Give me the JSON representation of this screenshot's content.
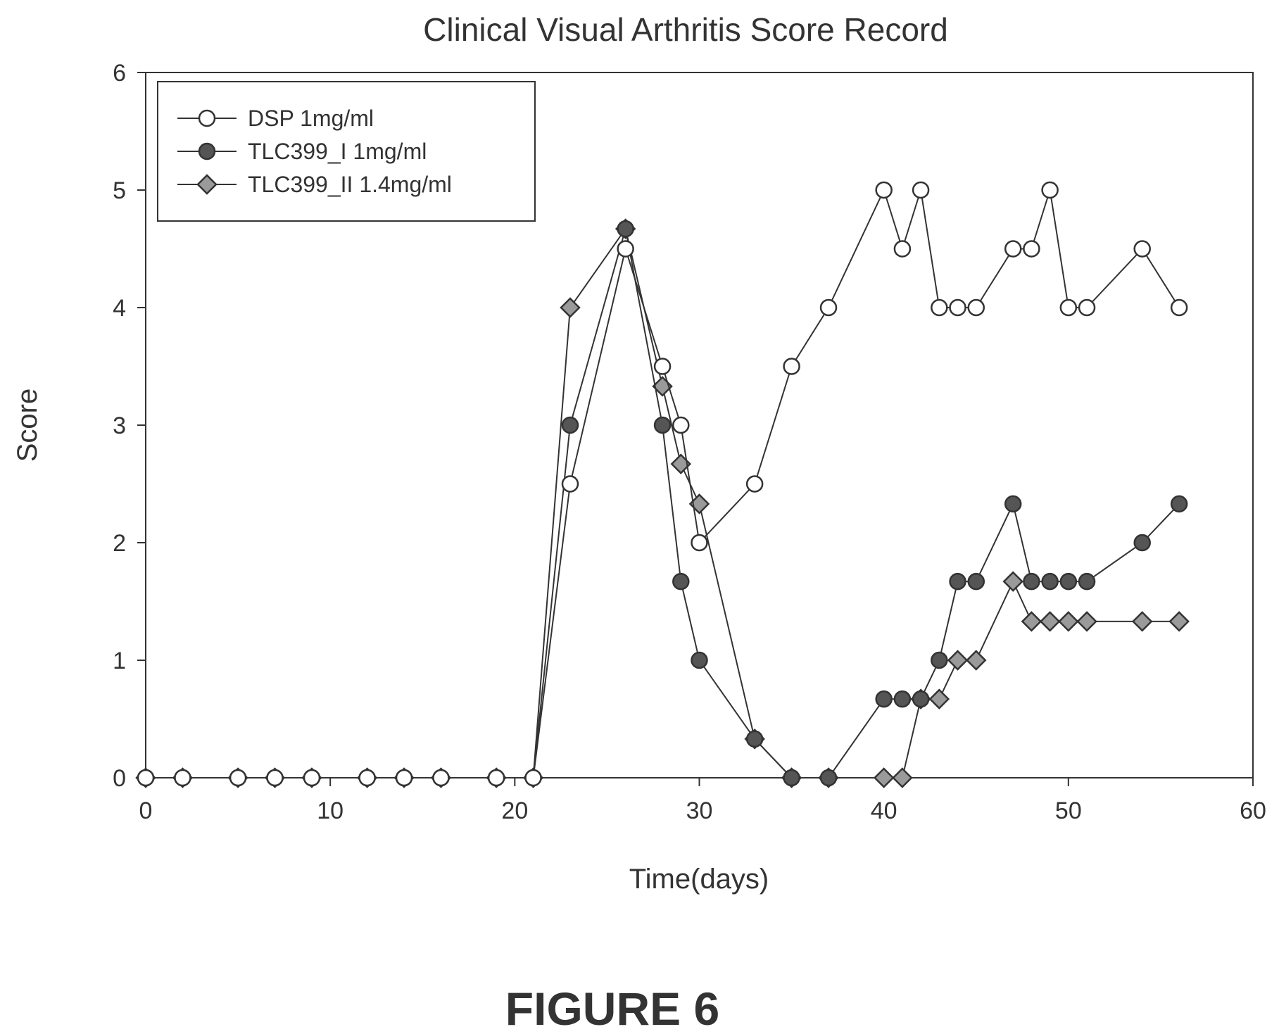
{
  "figure_caption": "FIGURE 6",
  "chart_data": {
    "type": "line",
    "title": "Clinical Visual Arthritis Score Record",
    "xlabel": "Time(days)",
    "ylabel": "Score",
    "xlim": [
      0,
      60
    ],
    "ylim": [
      0,
      6
    ],
    "x_ticks": [
      "0",
      "10",
      "20",
      "30",
      "40",
      "50",
      "60"
    ],
    "y_ticks": [
      "0",
      "1",
      "2",
      "3",
      "4",
      "5",
      "6"
    ],
    "grid": false,
    "legend_position": "top-left",
    "line_color": "#333333",
    "series": [
      {
        "name": "DSP  1mg/ml",
        "marker": "circle-open",
        "points": [
          [
            0,
            0
          ],
          [
            2,
            0
          ],
          [
            5,
            0
          ],
          [
            7,
            0
          ],
          [
            9,
            0
          ],
          [
            12,
            0
          ],
          [
            14,
            0
          ],
          [
            16,
            0
          ],
          [
            19,
            0
          ],
          [
            21,
            0
          ],
          [
            23,
            2.5
          ],
          [
            26,
            4.5
          ],
          [
            28,
            3.5
          ],
          [
            29,
            3.0
          ],
          [
            30,
            2.0
          ],
          [
            33,
            2.5
          ],
          [
            35,
            3.5
          ],
          [
            37,
            4.0
          ],
          [
            40,
            5.0
          ],
          [
            41,
            4.5
          ],
          [
            42,
            5.0
          ],
          [
            43,
            4.0
          ],
          [
            44,
            4.0
          ],
          [
            45,
            4.0
          ],
          [
            47,
            4.5
          ],
          [
            48,
            4.5
          ],
          [
            49,
            5.0
          ],
          [
            50,
            4.0
          ],
          [
            51,
            4.0
          ],
          [
            54,
            4.5
          ],
          [
            56,
            4.0
          ]
        ]
      },
      {
        "name": "TLC399_I  1mg/ml",
        "marker": "circle-filled",
        "points": [
          [
            0,
            0
          ],
          [
            2,
            0
          ],
          [
            5,
            0
          ],
          [
            7,
            0
          ],
          [
            9,
            0
          ],
          [
            12,
            0
          ],
          [
            14,
            0
          ],
          [
            16,
            0
          ],
          [
            19,
            0
          ],
          [
            21,
            0
          ],
          [
            23,
            3.0
          ],
          [
            26,
            4.67
          ],
          [
            28,
            3.0
          ],
          [
            29,
            1.67
          ],
          [
            30,
            1.0
          ],
          [
            33,
            0.33
          ],
          [
            35,
            0
          ],
          [
            37,
            0
          ],
          [
            40,
            0.67
          ],
          [
            41,
            0.67
          ],
          [
            42,
            0.67
          ],
          [
            43,
            1.0
          ],
          [
            44,
            1.67
          ],
          [
            45,
            1.67
          ],
          [
            47,
            2.33
          ],
          [
            48,
            1.67
          ],
          [
            49,
            1.67
          ],
          [
            50,
            1.67
          ],
          [
            51,
            1.67
          ],
          [
            54,
            2.0
          ],
          [
            56,
            2.33
          ]
        ]
      },
      {
        "name": "TLC399_II  1.4mg/ml",
        "marker": "diamond-filled",
        "points": [
          [
            0,
            0
          ],
          [
            2,
            0
          ],
          [
            5,
            0
          ],
          [
            7,
            0
          ],
          [
            9,
            0
          ],
          [
            12,
            0
          ],
          [
            14,
            0
          ],
          [
            16,
            0
          ],
          [
            19,
            0
          ],
          [
            21,
            0
          ],
          [
            23,
            4.0
          ],
          [
            26,
            4.67
          ],
          [
            28,
            3.33
          ],
          [
            29,
            2.67
          ],
          [
            30,
            2.33
          ],
          [
            33,
            0.33
          ],
          [
            35,
            0
          ],
          [
            37,
            0
          ],
          [
            40,
            0
          ],
          [
            41,
            0
          ],
          [
            42,
            0.67
          ],
          [
            43,
            0.67
          ],
          [
            44,
            1.0
          ],
          [
            45,
            1.0
          ],
          [
            47,
            1.67
          ],
          [
            48,
            1.33
          ],
          [
            49,
            1.33
          ],
          [
            50,
            1.33
          ],
          [
            51,
            1.33
          ],
          [
            54,
            1.33
          ],
          [
            56,
            1.33
          ]
        ]
      }
    ]
  }
}
